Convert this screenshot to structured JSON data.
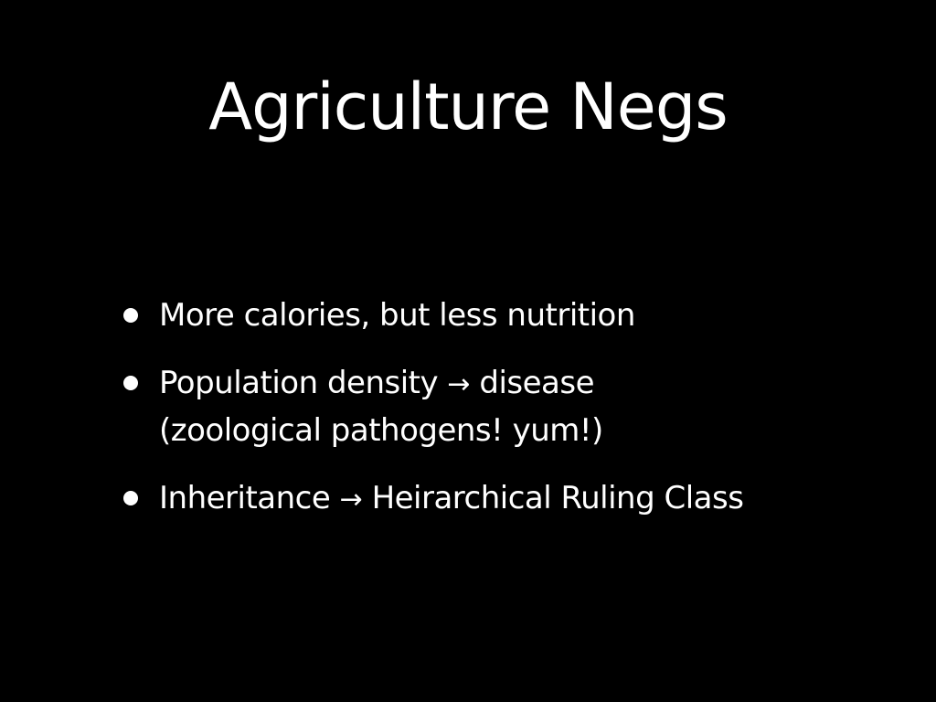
{
  "slide": {
    "title": "Agriculture Negs",
    "bullets": [
      {
        "line1": "More calories, but less nutrition"
      },
      {
        "line1_before": "Population density",
        "arrow": "→",
        "line1_after": "disease",
        "line2": "(zoological pathogens! yum!)"
      },
      {
        "line1_before": "Inheritance",
        "arrow": "→",
        "line1_after": "Heirarchical Ruling Class"
      }
    ]
  },
  "colors": {
    "background": "#000000",
    "text": "#ffffff"
  },
  "icons": {
    "bullet": "bullet-dot-icon",
    "arrow": "right-arrow-icon"
  }
}
